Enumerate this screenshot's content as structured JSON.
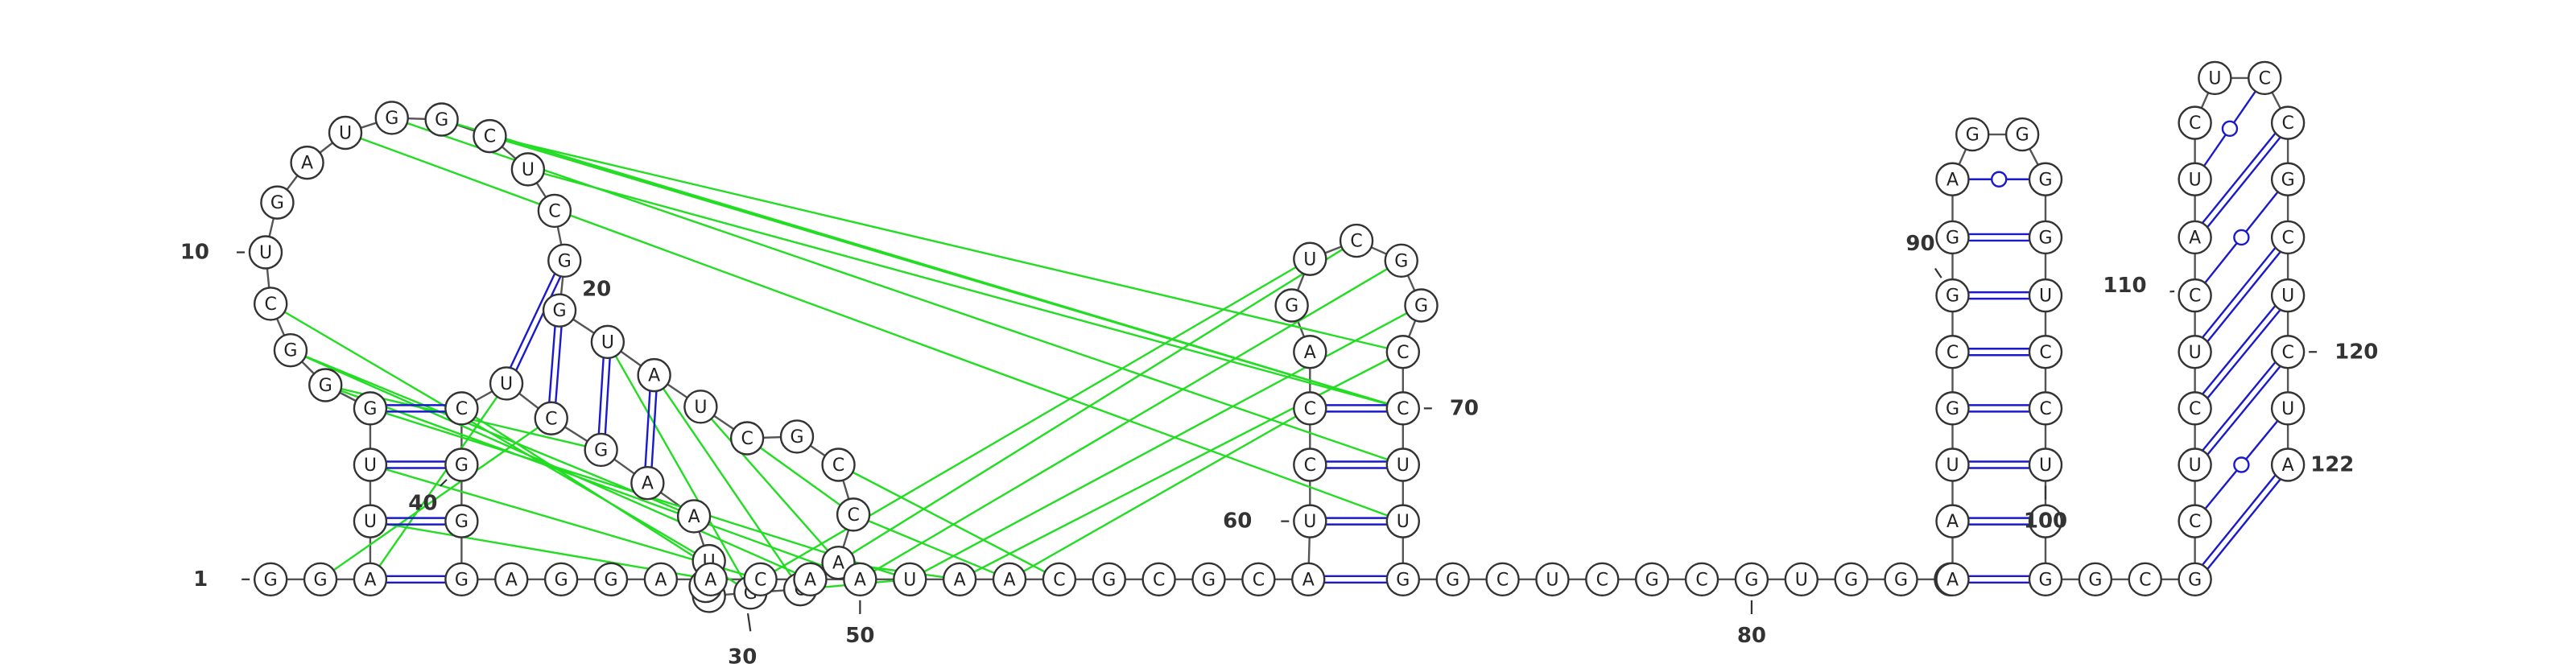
{
  "sequence": "GGAUUGGGCUGAUGGCUCGGUAUCGCCACGGUUAAGCUCGGGAGGAACAAUAACGCGCAUCCAGUCGGCCUUGGCUCGCGUGGCAAUGCGGAGGGGUCCUCGGCGCUCUCAUCUCCGCUCUAC",
  "labels": [
    {
      "index": 1,
      "text": "1"
    },
    {
      "index": 10,
      "text": "10"
    },
    {
      "index": 20,
      "text": "20"
    },
    {
      "index": 30,
      "text": "30"
    },
    {
      "index": 40,
      "text": "40"
    },
    {
      "index": 50,
      "text": "50"
    },
    {
      "index": 60,
      "text": "60"
    },
    {
      "index": 70,
      "text": "70"
    },
    {
      "index": 80,
      "text": "80"
    },
    {
      "index": 90,
      "text": "90"
    },
    {
      "index": 100,
      "text": "100"
    },
    {
      "index": 110,
      "text": "110"
    },
    {
      "index": 120,
      "text": "120"
    },
    {
      "index": 122,
      "text": "122"
    }
  ],
  "colors": {
    "canonical_pair": "#1a1acc",
    "wobble_pair": "#1a1acc",
    "tertiary_interaction": "#22dd22",
    "backbone": "#555555"
  }
}
